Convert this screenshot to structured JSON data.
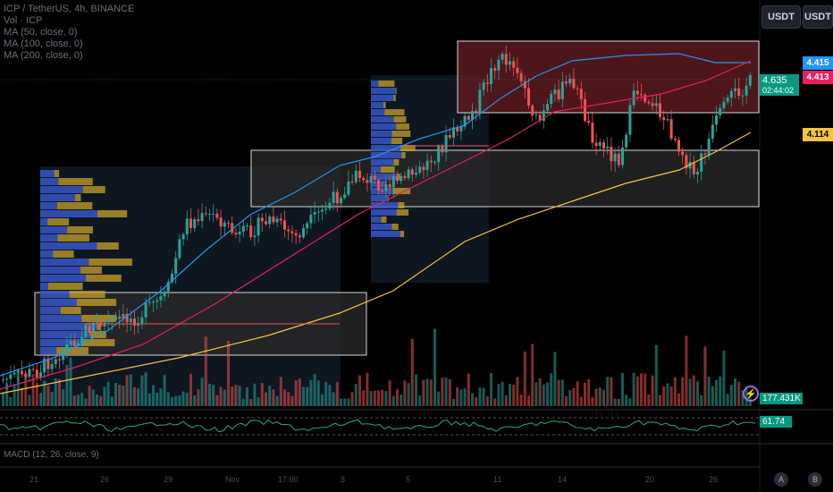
{
  "legend": {
    "symbol": "ICP / TetherUS, 4h, BINANCE",
    "vol": "Vol · ICP",
    "ma1": "MA (50, close, 0)",
    "ma2": "MA (100, close, 0)",
    "ma3": "MA (200, close, 0)"
  },
  "toolbar": {
    "currency_1": "USDT",
    "currency_2": "USDT"
  },
  "price_labels": {
    "ma50": "4.415",
    "ma100": "4.413",
    "last_price": "4.635",
    "countdown": "02:44:02",
    "ma200": "4.114",
    "volume": "177.431K",
    "rsi": "61.74"
  },
  "colors": {
    "ma50": "#2196f3",
    "ma100": "#e91e63",
    "ma200": "#f5c242",
    "up": "#26a69a",
    "down": "#ef5350",
    "last_price": "#089981",
    "zone_red": "#7a1f26",
    "zone_gray": "#3a3a3a"
  },
  "xaxis": [
    "21",
    "26",
    "29",
    "Nov",
    "17:00",
    "8",
    "5",
    "11",
    "14",
    "20",
    "26"
  ],
  "macd": {
    "title": "MACD (12, 26, close, 9)"
  },
  "bottom_buttons": [
    "A",
    "B"
  ]
}
